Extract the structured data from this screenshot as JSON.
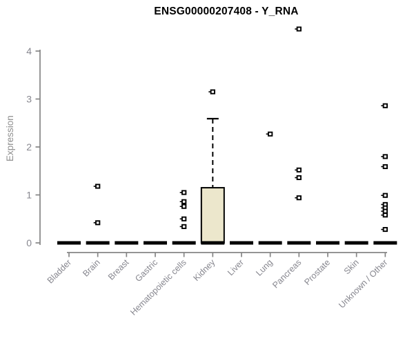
{
  "chart_data": {
    "type": "boxplot",
    "title": "ENSG00000207408 - Y_RNA",
    "ylabel": "Expression",
    "yticks": [
      0,
      1,
      2,
      3,
      4
    ],
    "ylim": [
      0,
      4.6
    ],
    "grid": false,
    "legend": false,
    "categories": [
      "Bladder",
      "Brain",
      "Breast",
      "Gastric",
      "Hematopoietic cells",
      "Kidney",
      "Liver",
      "Lung",
      "Pancreas",
      "Prostate",
      "Skin",
      "Unknown / Other"
    ],
    "series": [
      {
        "name": "Bladder",
        "median": 0,
        "q1": 0,
        "q3": 0,
        "whisker_low": 0,
        "whisker_high": 0,
        "outliers": []
      },
      {
        "name": "Brain",
        "median": 0,
        "q1": 0,
        "q3": 0,
        "whisker_low": 0,
        "whisker_high": 0,
        "outliers": [
          1.18,
          0.42
        ]
      },
      {
        "name": "Breast",
        "median": 0,
        "q1": 0,
        "q3": 0,
        "whisker_low": 0,
        "whisker_high": 0,
        "outliers": []
      },
      {
        "name": "Gastric",
        "median": 0,
        "q1": 0,
        "q3": 0,
        "whisker_low": 0,
        "whisker_high": 0,
        "outliers": []
      },
      {
        "name": "Hematopoietic cells",
        "median": 0,
        "q1": 0,
        "q3": 0,
        "whisker_low": 0,
        "whisker_high": 0,
        "outliers": [
          1.05,
          0.86,
          0.76,
          0.5,
          0.34
        ]
      },
      {
        "name": "Kidney",
        "median": 0,
        "q1": 0,
        "q3": 1.15,
        "whisker_low": 0,
        "whisker_high": 2.59,
        "outliers": [
          3.15
        ]
      },
      {
        "name": "Liver",
        "median": 0,
        "q1": 0,
        "q3": 0,
        "whisker_low": 0,
        "whisker_high": 0,
        "outliers": []
      },
      {
        "name": "Lung",
        "median": 0,
        "q1": 0,
        "q3": 0,
        "whisker_low": 0,
        "whisker_high": 0,
        "outliers": [
          2.27
        ]
      },
      {
        "name": "Pancreas",
        "median": 0,
        "q1": 0,
        "q3": 0,
        "whisker_low": 0,
        "whisker_high": 0,
        "outliers": [
          4.46,
          1.52,
          1.36,
          0.94
        ]
      },
      {
        "name": "Prostate",
        "median": 0,
        "q1": 0,
        "q3": 0,
        "whisker_low": 0,
        "whisker_high": 0,
        "outliers": []
      },
      {
        "name": "Skin",
        "median": 0,
        "q1": 0,
        "q3": 0,
        "whisker_low": 0,
        "whisker_high": 0,
        "outliers": []
      },
      {
        "name": "Unknown / Other",
        "median": 0,
        "q1": 0,
        "q3": 0,
        "whisker_low": 0,
        "whisker_high": 0,
        "outliers": [
          2.86,
          1.8,
          1.59,
          0.99,
          0.8,
          0.73,
          0.66,
          0.58,
          0.28
        ]
      }
    ],
    "colors": {
      "box_fill": "#ECE7CC",
      "box_stroke": "#000000",
      "median": "#000000",
      "whisker": "#000000",
      "outlier": "#000000",
      "axis": "#848484",
      "tick_label": "#87878f",
      "title": "#000000"
    }
  }
}
